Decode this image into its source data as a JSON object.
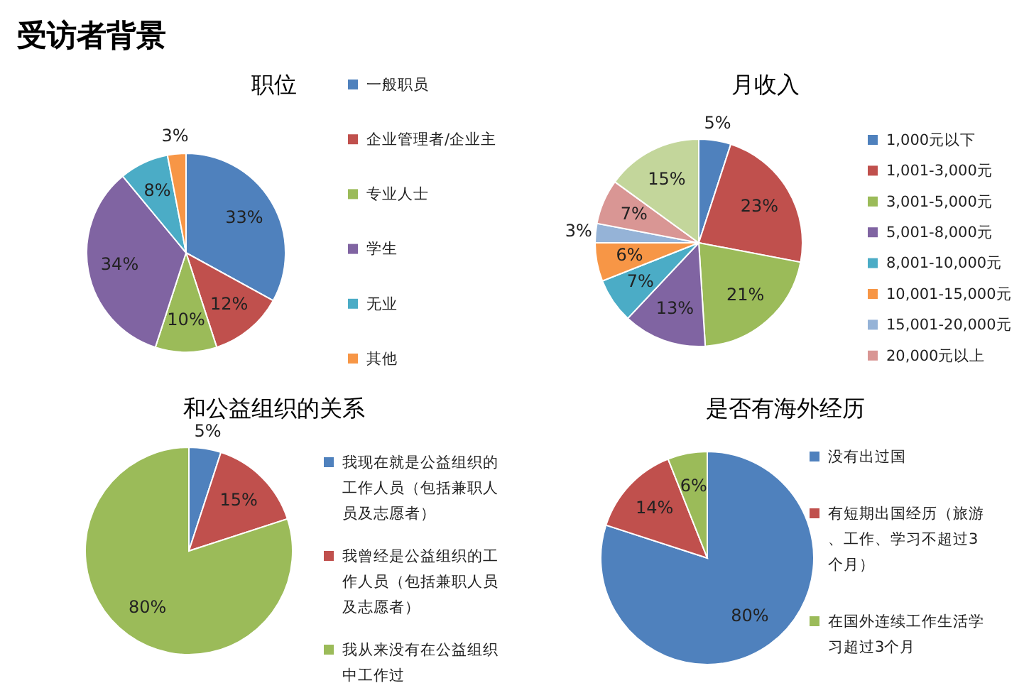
{
  "chart_data": [
    {
      "type": "pie",
      "title": "职位",
      "annotations": [
        "受访者背景"
      ],
      "legend": "right",
      "categories": [
        "一般职员",
        "企业管理者/企业主",
        "专业人士",
        "学生",
        "无业",
        "其他"
      ],
      "values": [
        33,
        12,
        10,
        34,
        8,
        3
      ],
      "value_labels": [
        "33%",
        "12%",
        "10%",
        "34%",
        "8%",
        "3%"
      ],
      "colors": [
        "#4f81bd",
        "#c0504d",
        "#9bbb59",
        "#8064a2",
        "#4bacc6",
        "#f79646"
      ]
    },
    {
      "type": "pie",
      "title": "月收入",
      "legend": "right",
      "categories": [
        "1,000元以下",
        "1,001-3,000元",
        "3,001-5,000元",
        "5,001-8,000元",
        "8,001-10,000元",
        "10,001-15,000元",
        "15,001-20,000元",
        "20,000元以上",
        null
      ],
      "values": [
        5,
        23,
        21,
        13,
        7,
        6,
        3,
        7,
        15
      ],
      "value_labels": [
        "5%",
        "23%",
        "21%",
        "13%",
        "7%",
        "6%",
        "3%",
        "7%",
        "15%"
      ],
      "colors": [
        "#4f81bd",
        "#c0504d",
        "#9bbb59",
        "#8064a2",
        "#4bacc6",
        "#f79646",
        "#95b3d7",
        "#d99694",
        "#c3d69b"
      ]
    },
    {
      "type": "pie",
      "title": "和公益组织的关系",
      "legend": "right",
      "categories": [
        "我现在就是公益组织的工作人员（包括兼职人员及志愿者）",
        "我曾经是公益组织的工作人员（包括兼职人员及志愿者）",
        "我从来没有在公益组织中工作过"
      ],
      "values": [
        5,
        15,
        80
      ],
      "value_labels": [
        "5%",
        "15%",
        "80%"
      ],
      "colors": [
        "#4f81bd",
        "#c0504d",
        "#9bbb59"
      ]
    },
    {
      "type": "pie",
      "title": "是否有海外经历",
      "legend": "right",
      "categories": [
        "没有出过国",
        "有短期出国经历（旅游、工作、学习不超过3个月）",
        "在国外连续工作生活学习超过3个月"
      ],
      "values": [
        80,
        14,
        6
      ],
      "value_labels": [
        "80%",
        "14%",
        "6%"
      ],
      "colors": [
        "#4f81bd",
        "#c0504d",
        "#9bbb59"
      ]
    }
  ]
}
